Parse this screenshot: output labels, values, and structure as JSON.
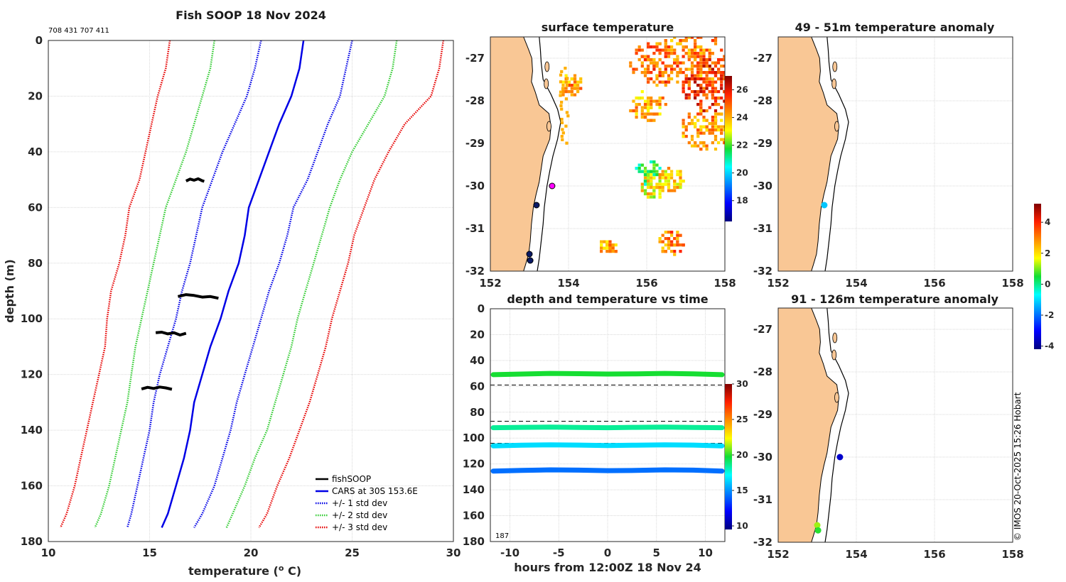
{
  "footer": {
    "credit": "© IMOS 20-Oct-2025 15:26 Hobart"
  },
  "colors": {
    "land": "#f9c795",
    "coast": "#000000",
    "cars": "#0000e6",
    "std1": "#0000e6",
    "std2": "#33cc33",
    "std3": "#e60000"
  },
  "chart_data": [
    {
      "type": "line",
      "title": "Fish SOOP 18 Nov 2024",
      "id_text": "708 431 707 411",
      "xlabel": "temperature (",
      "xlabel_sup": "o",
      "xlabel_tail": " C)",
      "ylabel": "depth (m)",
      "xlim": [
        10,
        30
      ],
      "ylim": [
        0,
        180
      ],
      "xticks": [
        "10",
        "15",
        "20",
        "25",
        "30"
      ],
      "yticks": [
        "0",
        "20",
        "40",
        "60",
        "80",
        "100",
        "120",
        "140",
        "160",
        "180"
      ],
      "legend": [
        "fishSOOP",
        "CARS at 30S 153.6E",
        "+/- 1 std dev",
        "+/- 2 std dev",
        "+/- 3 std dev"
      ],
      "depth": [
        0,
        10,
        20,
        30,
        40,
        50,
        60,
        70,
        80,
        90,
        100,
        110,
        120,
        130,
        140,
        150,
        160,
        170,
        175
      ],
      "series": [
        {
          "name": "CARS at 30S 153.6E",
          "style": "solid",
          "values": [
            22.6,
            22.4,
            22.0,
            21.4,
            20.9,
            20.4,
            19.9,
            19.7,
            19.4,
            18.9,
            18.5,
            18.0,
            17.6,
            17.2,
            17.0,
            16.7,
            16.3,
            15.9,
            15.6
          ]
        },
        {
          "name": "+1 std dev",
          "style": "dot1",
          "values": [
            25.0,
            24.7,
            24.4,
            23.8,
            23.3,
            22.8,
            22.1,
            21.8,
            21.4,
            20.9,
            20.5,
            20.1,
            19.7,
            19.3,
            19.0,
            18.6,
            18.2,
            17.6,
            17.2
          ]
        },
        {
          "name": "-1 std dev",
          "style": "dot1",
          "values": [
            20.5,
            20.2,
            19.8,
            19.2,
            18.6,
            18.1,
            17.6,
            17.3,
            17.0,
            16.6,
            16.3,
            15.9,
            15.5,
            15.2,
            15.0,
            14.7,
            14.4,
            14.1,
            13.9
          ]
        },
        {
          "name": "+2 std dev",
          "style": "dot2",
          "values": [
            27.2,
            27.0,
            26.6,
            25.8,
            25.0,
            24.4,
            23.9,
            23.5,
            23.1,
            22.7,
            22.3,
            22.0,
            21.6,
            21.2,
            20.8,
            20.2,
            19.7,
            19.1,
            18.8
          ]
        },
        {
          "name": "-2 std dev",
          "style": "dot2",
          "values": [
            18.2,
            18.0,
            17.6,
            17.2,
            16.8,
            16.3,
            15.8,
            15.5,
            15.2,
            14.9,
            14.6,
            14.3,
            14.1,
            13.9,
            13.6,
            13.3,
            13.0,
            12.6,
            12.3
          ]
        },
        {
          "name": "+3 std dev",
          "style": "dot3",
          "values": [
            29.5,
            29.3,
            28.9,
            27.6,
            26.8,
            26.1,
            25.6,
            25.1,
            24.8,
            24.4,
            24.0,
            23.7,
            23.3,
            22.9,
            22.4,
            21.9,
            21.3,
            20.8,
            20.4
          ]
        },
        {
          "name": "-3 std dev",
          "style": "dot3",
          "values": [
            16.0,
            15.8,
            15.4,
            15.1,
            14.8,
            14.5,
            14.0,
            13.8,
            13.5,
            13.1,
            12.9,
            12.8,
            12.5,
            12.2,
            11.9,
            11.6,
            11.3,
            10.9,
            10.6
          ]
        }
      ],
      "fishsoop": [
        {
          "temps": [
            16.8,
            17.0,
            17.2,
            17.4,
            17.6,
            17.7
          ],
          "depths": [
            50.5,
            49.8,
            50.2,
            49.7,
            50.4,
            50.6
          ]
        },
        {
          "temps": [
            16.4,
            16.8,
            17.2,
            17.6,
            18.0,
            18.4
          ],
          "depths": [
            92.0,
            91.3,
            91.6,
            92.2,
            92.0,
            92.6
          ]
        },
        {
          "temps": [
            15.3,
            15.6,
            15.9,
            16.2,
            16.5,
            16.8
          ],
          "depths": [
            105.0,
            104.8,
            105.4,
            105.0,
            105.8,
            105.2
          ]
        },
        {
          "temps": [
            14.6,
            14.9,
            15.2,
            15.5,
            15.8,
            16.1
          ],
          "depths": [
            125.2,
            124.6,
            125.0,
            124.5,
            124.8,
            125.3
          ]
        }
      ]
    },
    {
      "type": "heatmap",
      "title": "surface temperature",
      "xlim": [
        152,
        158
      ],
      "ylim": [
        -32,
        -26.5
      ],
      "xticks": [
        "152",
        "154",
        "156",
        "158"
      ],
      "yticks": [
        "-27",
        "-28",
        "-29",
        "-30",
        "-31",
        "-32"
      ],
      "colorbar": {
        "min": 16.5,
        "max": 27,
        "ticks": [
          "18",
          "20",
          "22",
          "24",
          "26"
        ]
      },
      "markers": [
        {
          "lon": 153.58,
          "lat": -30.0,
          "color": "#ff00ff"
        },
        {
          "lon": 153.18,
          "lat": -30.45,
          "color": "#0a1a66"
        },
        {
          "lon": 153.0,
          "lat": -31.6,
          "color": "#0a1a66"
        },
        {
          "lon": 153.02,
          "lat": -31.75,
          "color": "#0a1a66"
        }
      ],
      "sst_patches": [
        {
          "lon": 157.2,
          "lat": -26.9,
          "value": 24.5,
          "spread": 0.9
        },
        {
          "lon": 157.6,
          "lat": -27.6,
          "value": 25.5,
          "spread": 0.7
        },
        {
          "lon": 156.2,
          "lat": -27.1,
          "value": 24.8,
          "spread": 0.6
        },
        {
          "lon": 157.5,
          "lat": -28.6,
          "value": 24.3,
          "spread": 0.6
        },
        {
          "lon": 156.0,
          "lat": -28.1,
          "value": 24.0,
          "spread": 0.4
        },
        {
          "lon": 156.0,
          "lat": -29.65,
          "value": 21.5,
          "spread": 0.3
        },
        {
          "lon": 156.1,
          "lat": -30.0,
          "value": 23.3,
          "spread": 0.3
        },
        {
          "lon": 156.6,
          "lat": -29.8,
          "value": 23.6,
          "spread": 0.3
        },
        {
          "lon": 156.6,
          "lat": -31.3,
          "value": 24.6,
          "spread": 0.3
        },
        {
          "lon": 154.0,
          "lat": -27.6,
          "value": 24.3,
          "spread": 0.3
        },
        {
          "lon": 155.0,
          "lat": -31.4,
          "value": 24.2,
          "spread": 0.2
        }
      ]
    },
    {
      "type": "scatter",
      "title": "49 - 51m temperature anomaly",
      "xlim": [
        152,
        158
      ],
      "ylim": [
        -32,
        -26.5
      ],
      "xticks": [
        "152",
        "154",
        "156",
        "158"
      ],
      "yticks": [
        "-27",
        "-28",
        "-29",
        "-30",
        "-31",
        "-32"
      ],
      "points": [
        {
          "lon": 153.18,
          "lat": -30.45,
          "anomaly": -1.2
        }
      ]
    },
    {
      "type": "scatter",
      "title": "91 - 126m temperature anomaly",
      "xlim": [
        152,
        158
      ],
      "ylim": [
        -32,
        -26.5
      ],
      "xticks": [
        "152",
        "154",
        "156",
        "158"
      ],
      "yticks": [
        "-27",
        "-28",
        "-29",
        "-30",
        "-31",
        "-32"
      ],
      "points": [
        {
          "lon": 153.58,
          "lat": -30.0,
          "anomaly": -3.5
        },
        {
          "lon": 153.0,
          "lat": -31.6,
          "anomaly": 1.2
        },
        {
          "lon": 153.02,
          "lat": -31.72,
          "anomaly": 0.6
        }
      ]
    },
    {
      "type": "colorbar",
      "label": "temperature anomaly",
      "min": -4.2,
      "max": 5.2,
      "ticks": [
        "4",
        "2",
        "0",
        "-2",
        "-4"
      ]
    },
    {
      "type": "line",
      "title": "depth and temperature vs time",
      "xlabel": "hours from 12:00Z 18 Nov 24",
      "xlim": [
        -12,
        12
      ],
      "ylim": [
        0,
        180
      ],
      "xticks": [
        "-10",
        "-5",
        "0",
        "5",
        "10"
      ],
      "yticks": [
        "0",
        "20",
        "40",
        "60",
        "80",
        "100",
        "120",
        "140",
        "160",
        "180"
      ],
      "count_label": "187",
      "dashed_depths": [
        59,
        87,
        104
      ],
      "colorbar": {
        "min": 9.5,
        "max": 30,
        "ticks": [
          "30",
          "25",
          "20",
          "15",
          "10"
        ]
      },
      "tracks": [
        {
          "name": "50m",
          "temp": 19.8,
          "depths": [
            51,
            50.5,
            50,
            50.2,
            50.5,
            50.3,
            50,
            50.4,
            51
          ]
        },
        {
          "name": "91m",
          "temp": 18.5,
          "depths": [
            92,
            91.7,
            91.5,
            91.8,
            92,
            91.7,
            91.5,
            91.8,
            92
          ]
        },
        {
          "name": "105m",
          "temp": 16.5,
          "depths": [
            106,
            105.5,
            105.2,
            105.4,
            105.8,
            105.5,
            105.2,
            105.4,
            106
          ]
        },
        {
          "name": "125m",
          "temp": 14.3,
          "depths": [
            125.5,
            125,
            124.6,
            124.8,
            125.2,
            125,
            124.6,
            124.8,
            125.5
          ]
        }
      ]
    }
  ]
}
